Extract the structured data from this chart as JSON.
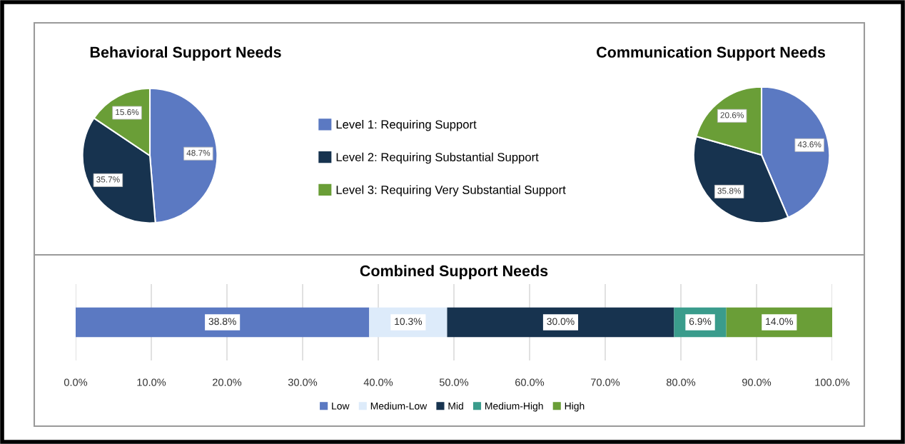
{
  "chart_data": [
    {
      "type": "pie",
      "title": "Behavioral Support Needs",
      "categories": [
        "Level 1: Requiring Support",
        "Level 2: Requiring Substantial Support",
        "Level 3: Requiring Very Substantial Support"
      ],
      "values": [
        48.7,
        35.7,
        15.6
      ],
      "colors": [
        "#5b79c2",
        "#17334f",
        "#6a9e37"
      ],
      "value_labels": [
        "48.7%",
        "35.7%",
        "15.6%"
      ],
      "legend": "right"
    },
    {
      "type": "pie",
      "title": "Communication Support Needs",
      "categories": [
        null,
        null,
        null
      ],
      "values": [
        43.6,
        35.8,
        20.6
      ],
      "colors": [
        "#5b79c2",
        "#17334f",
        "#6a9e37"
      ],
      "value_labels": [
        "43.6%",
        "35.8%",
        "20.6%"
      ]
    },
    {
      "type": "bar",
      "title": "Combined Support Needs",
      "orientation": "horizontal",
      "stacked": true,
      "categories": [
        null
      ],
      "series": [
        {
          "name": "Low",
          "color": "#5b79c2",
          "values": [
            38.8
          ],
          "value_labels": [
            "38.8%"
          ]
        },
        {
          "name": "Medium-Low",
          "color": "#ddebfa",
          "values": [
            10.3
          ],
          "value_labels": [
            "10.3%"
          ]
        },
        {
          "name": "Mid",
          "color": "#17334f",
          "values": [
            30.0
          ],
          "value_labels": [
            "30.0%"
          ]
        },
        {
          "name": "Medium-High",
          "color": "#3a9c8c",
          "values": [
            6.9
          ],
          "value_labels": [
            "6.9%"
          ]
        },
        {
          "name": "High",
          "color": "#6a9e37",
          "values": [
            14.0
          ],
          "value_labels": [
            "14.0%"
          ]
        }
      ],
      "xlim": [
        0,
        100
      ],
      "xticks": [
        {
          "value": 0,
          "label": "0.0%"
        },
        {
          "value": 10,
          "label": "10.0%"
        },
        {
          "value": 20,
          "label": "20.0%"
        },
        {
          "value": 30,
          "label": "30.0%"
        },
        {
          "value": 40,
          "label": "40.0%"
        },
        {
          "value": 50,
          "label": "50.0%"
        },
        {
          "value": 60,
          "label": "60.0%"
        },
        {
          "value": 70,
          "label": "70.0%"
        },
        {
          "value": 80,
          "label": "80.0%"
        },
        {
          "value": 90,
          "label": "90.0%"
        },
        {
          "value": 100,
          "label": "100.0%"
        }
      ],
      "grid": "x",
      "legend": "bottom",
      "tick_labels": "x"
    }
  ]
}
